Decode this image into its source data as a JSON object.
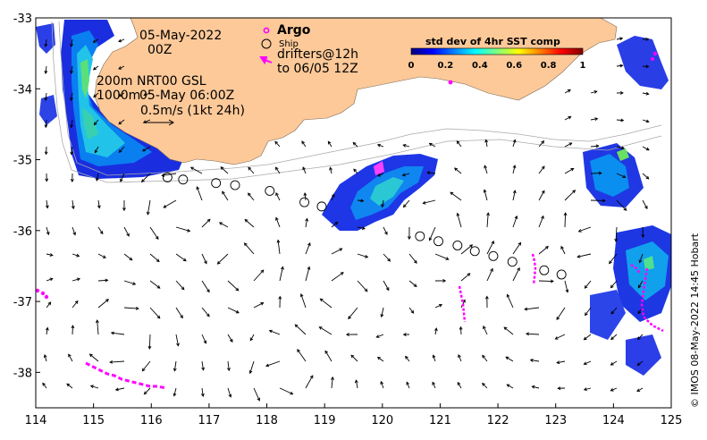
{
  "map": {
    "lon_range": [
      114,
      125
    ],
    "lat_range": [
      -38.5,
      -33
    ],
    "x_ticks": [
      "114",
      "115",
      "116",
      "117",
      "118",
      "119",
      "120",
      "121",
      "122",
      "123",
      "124",
      "125"
    ],
    "y_ticks": [
      "-33",
      "-34",
      "-35",
      "-36",
      "-37",
      "-38"
    ],
    "land_color": "#fdc999",
    "arrow_color": "#000000",
    "ship_color": "#000000",
    "argo_color": "#ff00ff"
  },
  "annotations": {
    "date_line1": "05-May-2022",
    "date_line2": "00Z",
    "depth_200": "200m",
    "depth_1000": "1000m",
    "product": "NRT00 GSL",
    "product_time": "05-May 06:00Z",
    "scale_label": "0.5m/s (1kt 24h)"
  },
  "legend": {
    "argo": "Argo",
    "ship": "Ship",
    "drifters_line1": "drifters@12h",
    "drifters_line2": "to 06/05 12Z"
  },
  "colorbar": {
    "title": "std dev of 4hr SST comp",
    "ticks": [
      "0",
      "0.2",
      "0.4",
      "0.6",
      "0.8",
      "1"
    ],
    "colors": [
      "#00007f",
      "#0000ff",
      "#0080ff",
      "#00ffff",
      "#80ff80",
      "#ffff00",
      "#ff8000",
      "#ff0000",
      "#7f0000"
    ]
  },
  "copyright": "© IMOS 08-May-2022 14:45 Hobart",
  "ship_track": [
    [
      116.28,
      -35.25
    ],
    [
      116.55,
      -35.28
    ],
    [
      117.12,
      -35.33
    ],
    [
      117.45,
      -35.36
    ],
    [
      118.05,
      -35.44
    ],
    [
      118.65,
      -35.6
    ],
    [
      118.95,
      -35.66
    ],
    [
      120.65,
      -36.08
    ],
    [
      120.97,
      -36.15
    ],
    [
      121.3,
      -36.21
    ],
    [
      121.6,
      -36.29
    ],
    [
      121.92,
      -36.36
    ],
    [
      122.25,
      -36.44
    ],
    [
      122.8,
      -36.56
    ],
    [
      123.1,
      -36.62
    ]
  ]
}
